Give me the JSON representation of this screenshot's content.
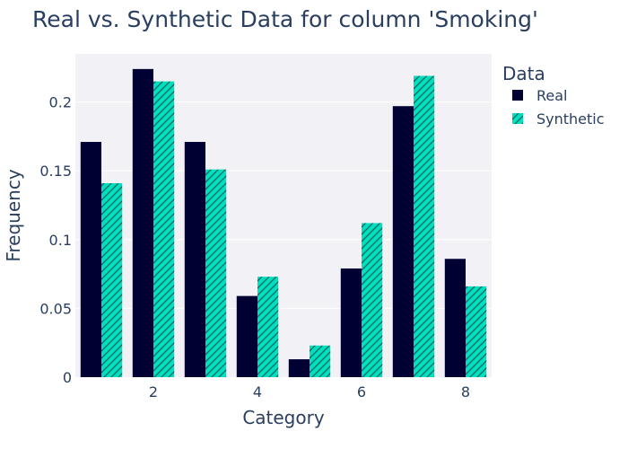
{
  "chart_data": {
    "type": "bar",
    "title": "Real vs. Synthetic Data for column 'Smoking'",
    "xlabel": "Category",
    "ylabel": "Frequency",
    "categories": [
      1,
      2,
      3,
      4,
      5,
      6,
      7,
      8
    ],
    "x_ticks": [
      2,
      4,
      6,
      8
    ],
    "x_tick_labels": [
      "2",
      "4",
      "6",
      "8"
    ],
    "xlim": [
      0.5,
      8.5
    ],
    "ylim": [
      0,
      0.235
    ],
    "y_ticks": [
      0,
      0.05,
      0.1,
      0.15,
      0.2
    ],
    "y_tick_labels": [
      "0",
      "0.05",
      "0.1",
      "0.15",
      "0.2"
    ],
    "grid": true,
    "legend_title": "Data",
    "legend_position": "top-right",
    "series": [
      {
        "name": "Real",
        "color": "#000033",
        "pattern": "solid",
        "values": [
          0.171,
          0.224,
          0.171,
          0.059,
          0.013,
          0.079,
          0.197,
          0.086
        ]
      },
      {
        "name": "Synthetic",
        "color": "#00e0c0",
        "pattern": "diagonal-hatch",
        "values": [
          0.141,
          0.215,
          0.151,
          0.073,
          0.023,
          0.112,
          0.219,
          0.066
        ]
      }
    ]
  }
}
